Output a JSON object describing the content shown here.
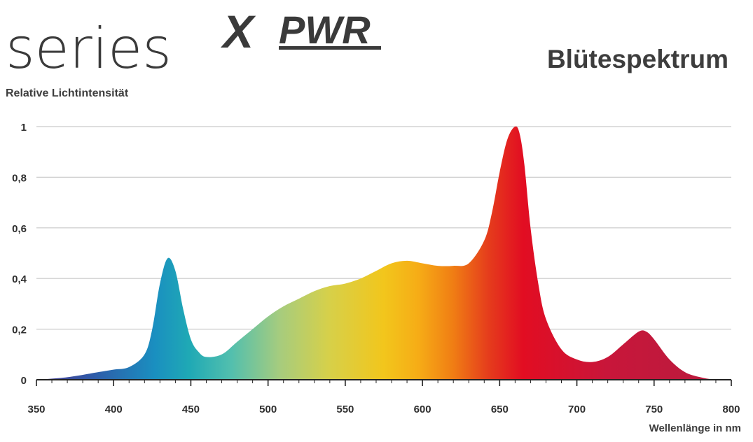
{
  "logo": {
    "series": "series",
    "x": "X",
    "pwr": "PWR"
  },
  "chart_data": {
    "type": "area",
    "title": "Blütespektrum",
    "xlabel": "Wellenlänge in nm",
    "ylabel": "Relative Lichtintensität",
    "xlim": [
      350,
      800
    ],
    "ylim": [
      0,
      1
    ],
    "xticks": [
      350,
      400,
      450,
      500,
      550,
      600,
      650,
      700,
      750,
      800
    ],
    "xtick_labels": [
      "350",
      "400",
      "450",
      "500",
      "550",
      "600",
      "650",
      "700",
      "750",
      "800"
    ],
    "yticks": [
      0,
      0.2,
      0.4,
      0.6,
      0.8,
      1
    ],
    "ytick_labels": [
      "0",
      "0,2",
      "0,4",
      "0,6",
      "0,8",
      "1"
    ],
    "grid": "horizontal",
    "fill": "spectral gradient",
    "series": [
      {
        "x": [
          350,
          370,
          390,
          400,
          410,
          420,
          425,
          430,
          435,
          440,
          445,
          450,
          455,
          460,
          470,
          480,
          490,
          500,
          510,
          520,
          530,
          540,
          550,
          560,
          570,
          580,
          590,
          600,
          610,
          620,
          630,
          640,
          645,
          650,
          655,
          660,
          663,
          666,
          670,
          675,
          680,
          690,
          700,
          710,
          720,
          730,
          740,
          745,
          750,
          760,
          770,
          780,
          790,
          800
        ],
        "y": [
          0.0,
          0.01,
          0.03,
          0.04,
          0.05,
          0.1,
          0.2,
          0.38,
          0.48,
          0.43,
          0.28,
          0.16,
          0.11,
          0.09,
          0.1,
          0.15,
          0.2,
          0.25,
          0.29,
          0.32,
          0.35,
          0.37,
          0.38,
          0.4,
          0.43,
          0.46,
          0.47,
          0.46,
          0.45,
          0.45,
          0.46,
          0.55,
          0.66,
          0.82,
          0.95,
          1.0,
          0.97,
          0.85,
          0.6,
          0.38,
          0.24,
          0.12,
          0.08,
          0.07,
          0.09,
          0.14,
          0.19,
          0.19,
          0.16,
          0.08,
          0.03,
          0.01,
          0.0,
          0.0
        ]
      }
    ]
  }
}
